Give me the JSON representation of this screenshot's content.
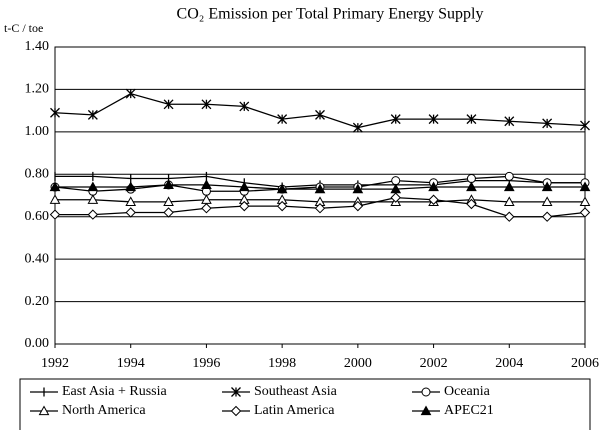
{
  "chart_data": {
    "type": "line",
    "title": "CO₂ Emission  per Total Primary Energy Supply",
    "y_label": "t-C / toe",
    "x": [
      1992,
      1993,
      1994,
      1995,
      1996,
      1997,
      1998,
      1999,
      2000,
      2001,
      2002,
      2003,
      2004,
      2005,
      2006
    ],
    "xlim": [
      1992,
      2006
    ],
    "xticks": [
      1992,
      1994,
      1996,
      1998,
      2000,
      2002,
      2004,
      2006
    ],
    "ylim": [
      0,
      1.4
    ],
    "yticks": [
      {
        "value": 0,
        "label": "0.00"
      },
      {
        "value": 0.2,
        "label": "0.20"
      },
      {
        "value": 0.4,
        "label": "0.40"
      },
      {
        "value": 0.6,
        "label": "0.60"
      },
      {
        "value": 0.8,
        "label": "0.80"
      },
      {
        "value": 1.0,
        "label": "1.00"
      },
      {
        "value": 1.2,
        "label": "1.20"
      },
      {
        "value": 1.4,
        "label": "1.40"
      }
    ],
    "grid": true,
    "legend": "bottom",
    "series": [
      {
        "name": "East Asia + Russia",
        "color": "#000000",
        "marker": "tick",
        "values": [
          0.79,
          0.79,
          0.78,
          0.78,
          0.79,
          0.76,
          0.74,
          0.75,
          0.75,
          0.75,
          0.75,
          0.77,
          0.77,
          0.76,
          0.76
        ]
      },
      {
        "name": "Southeast Asia",
        "color": "#000000",
        "marker": "asterisk",
        "values": [
          1.09,
          1.08,
          1.18,
          1.13,
          1.13,
          1.12,
          1.06,
          1.08,
          1.02,
          1.06,
          1.06,
          1.06,
          1.05,
          1.04,
          1.03
        ]
      },
      {
        "name": "Oceania",
        "color": "#000000",
        "marker": "circle",
        "values": [
          0.74,
          0.72,
          0.73,
          0.75,
          0.72,
          0.72,
          0.73,
          0.74,
          0.74,
          0.77,
          0.76,
          0.78,
          0.79,
          0.76,
          0.76
        ]
      },
      {
        "name": "North America",
        "color": "#000000",
        "marker": "triangle",
        "values": [
          0.68,
          0.68,
          0.67,
          0.67,
          0.68,
          0.68,
          0.68,
          0.67,
          0.67,
          0.67,
          0.67,
          0.68,
          0.67,
          0.67,
          0.67
        ]
      },
      {
        "name": "Latin America",
        "color": "#000000",
        "marker": "diamond",
        "values": [
          0.61,
          0.61,
          0.62,
          0.62,
          0.64,
          0.65,
          0.65,
          0.64,
          0.65,
          0.69,
          0.68,
          0.66,
          0.6,
          0.6,
          0.62
        ]
      },
      {
        "name": "APEC21",
        "color": "#000000",
        "marker": "triangle-filled",
        "values": [
          0.74,
          0.74,
          0.74,
          0.75,
          0.75,
          0.74,
          0.73,
          0.73,
          0.73,
          0.73,
          0.74,
          0.74,
          0.74,
          0.74,
          0.74
        ]
      }
    ]
  }
}
